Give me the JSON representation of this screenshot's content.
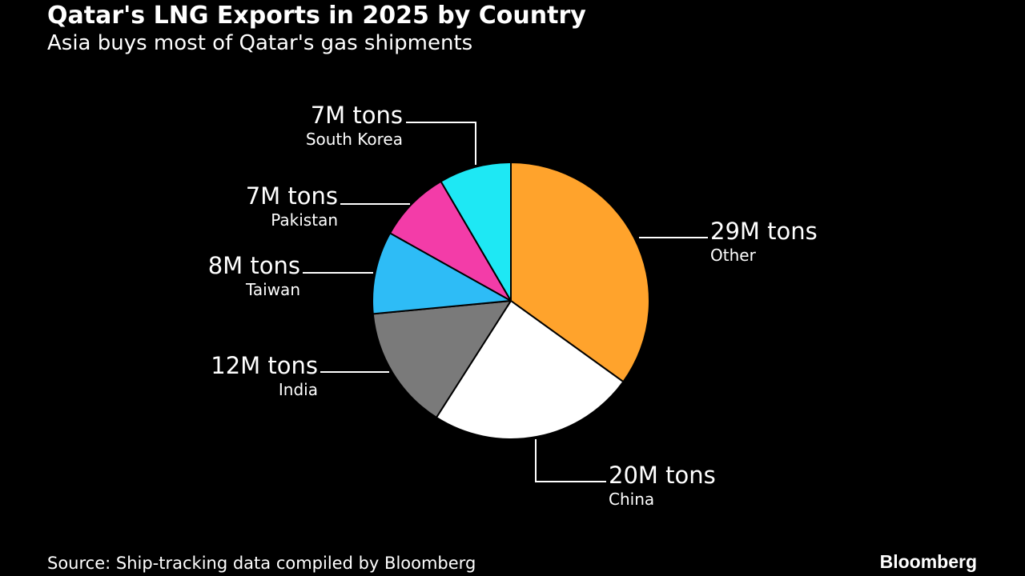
{
  "header": {
    "title": "Qatar's LNG Exports in 2025 by Country",
    "subtitle": "Asia buys most of Qatar's gas shipments"
  },
  "footer": {
    "source": "Source: Ship-tracking data compiled by Bloomberg",
    "brand": "Bloomberg"
  },
  "chart_data": {
    "type": "pie",
    "title": "Qatar's LNG Exports in 2025 by Country",
    "subtitle": "Asia buys most of Qatar's gas shipments",
    "slices": [
      {
        "name": "Other",
        "value": 29,
        "label": "29M tons",
        "color": "#ffa32c"
      },
      {
        "name": "China",
        "value": 20,
        "label": "20M tons",
        "color": "#ffffff"
      },
      {
        "name": "India",
        "value": 12,
        "label": "12M tons",
        "color": "#7a7a7a"
      },
      {
        "name": "Taiwan",
        "value": 8,
        "label": "8M tons",
        "color": "#2ebcf6"
      },
      {
        "name": "Pakistan",
        "value": 7,
        "label": "7M tons",
        "color": "#f33ca8"
      },
      {
        "name": "South Korea",
        "value": 7,
        "label": "7M tons",
        "color": "#1ee8f4"
      }
    ],
    "start": "12 o'clock",
    "direction": "clockwise",
    "slice_border_color": "#000000",
    "leader_color": "#ffffff"
  }
}
